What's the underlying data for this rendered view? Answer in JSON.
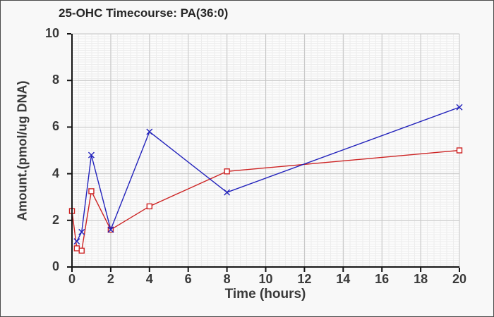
{
  "window": {
    "background_color": "#f8f8f8",
    "border_color": "#4a4a4a"
  },
  "chart_data": {
    "type": "line",
    "title": "25-OHC Timecourse: PA(36:0)",
    "xlabel": "Time (hours)",
    "ylabel": "Amount.(pmol/ug DNA)",
    "xlim": [
      0,
      20
    ],
    "ylim": [
      0,
      10
    ],
    "x_ticks": [
      0,
      2,
      4,
      6,
      8,
      10,
      12,
      14,
      16,
      18,
      20
    ],
    "y_ticks": [
      0,
      2,
      4,
      6,
      8,
      10
    ],
    "grid": "major gray lines at ticks plus fine light minor graph-paper grid",
    "legend_position": "none",
    "series": [
      {
        "name": "red-open-square-series",
        "marker": "open-square",
        "color": "#cc2222",
        "x": [
          0,
          0.25,
          0.5,
          1,
          2,
          4,
          8,
          20
        ],
        "y": [
          2.4,
          0.8,
          0.7,
          3.25,
          1.6,
          2.6,
          4.1,
          5.0
        ]
      },
      {
        "name": "blue-x-series",
        "marker": "x",
        "color": "#2222bb",
        "x": [
          0.25,
          0.5,
          1,
          2,
          4,
          8,
          20
        ],
        "y": [
          1.1,
          1.5,
          4.8,
          1.6,
          5.8,
          3.2,
          6.85
        ]
      }
    ],
    "colors": {
      "grid_major": "#c5c5c5",
      "grid_minor": "#ededed",
      "axis": "#141414",
      "tick_text": "#3a3a3a",
      "title_text": "#262626",
      "plot_background": "#fcfcfc"
    }
  }
}
